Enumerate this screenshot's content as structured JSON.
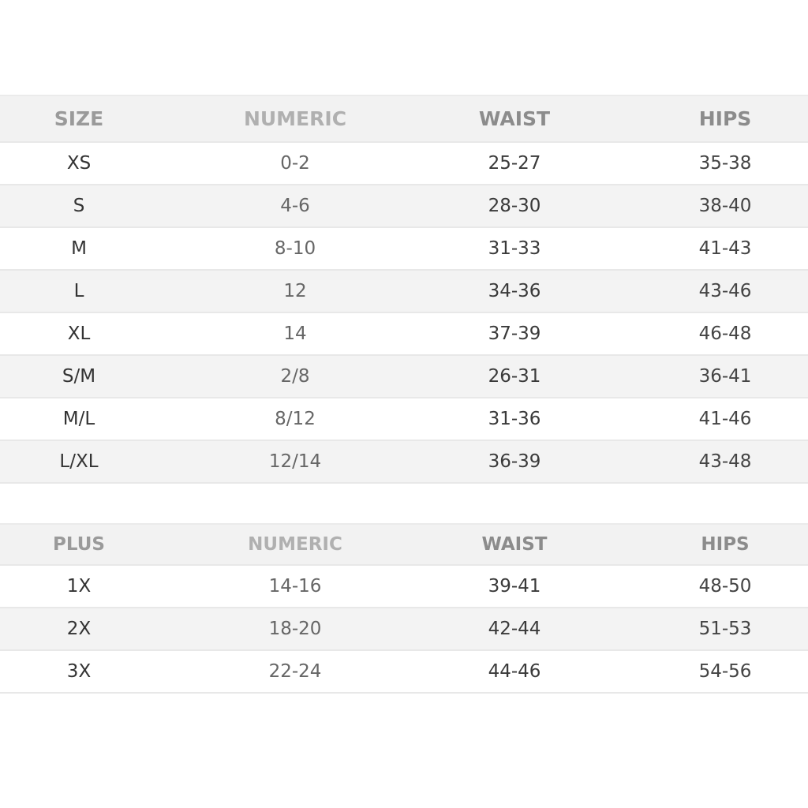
{
  "standard": {
    "headers": [
      "SIZE",
      "NUMERIC",
      "WAIST",
      "HIPS"
    ],
    "rows": [
      [
        "XS",
        "0-2",
        "25-27",
        "35-38"
      ],
      [
        "S",
        "4-6",
        "28-30",
        "38-40"
      ],
      [
        "M",
        "8-10",
        "31-33",
        "41-43"
      ],
      [
        "L",
        "12",
        "34-36",
        "43-46"
      ],
      [
        "XL",
        "14",
        "37-39",
        "46-48"
      ],
      [
        "S/M",
        "2/8",
        "26-31",
        "36-41"
      ],
      [
        "M/L",
        "8/12",
        "31-36",
        "41-46"
      ],
      [
        "L/XL",
        "12/14",
        "36-39",
        "43-48"
      ]
    ]
  },
  "plus": {
    "headers": [
      "PLUS",
      "NUMERIC",
      "WAIST",
      "HIPS"
    ],
    "rows": [
      [
        "1X",
        "14-16",
        "39-41",
        "48-50"
      ],
      [
        "2X",
        "18-20",
        "42-44",
        "51-53"
      ],
      [
        "3X",
        "22-24",
        "44-46",
        "54-56"
      ]
    ]
  }
}
